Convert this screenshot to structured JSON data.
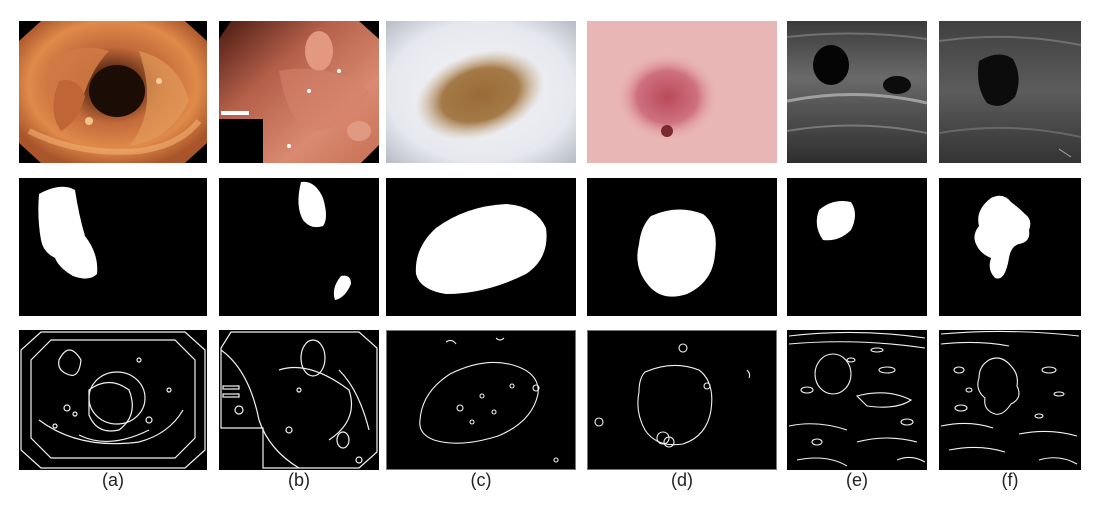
{
  "captions": [
    "(a)",
    "(b)",
    "(c)",
    "(d)",
    "(e)",
    "(f)"
  ],
  "rows": [
    "image",
    "mask",
    "edge"
  ],
  "colors": {
    "background": "#ffffff",
    "mask_fg": "#ffffff",
    "mask_bg": "#000000",
    "edge_line": "#f2f2f2",
    "colon": "#c97548",
    "stomach": "#c7705a",
    "lesion_c": "#9a7040",
    "skin_d": "#d98a90",
    "ultrasound": "#5a5a5a"
  }
}
